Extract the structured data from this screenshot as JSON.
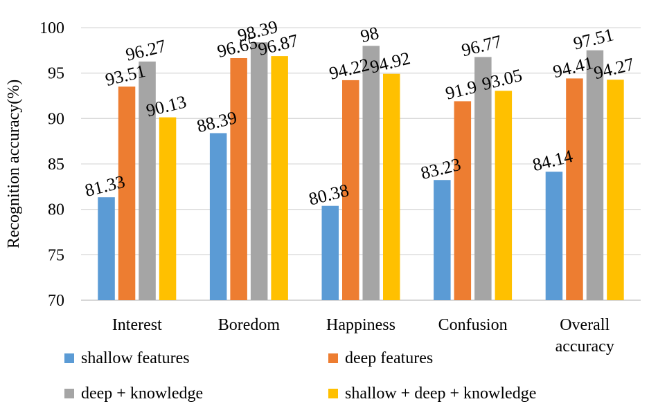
{
  "chart_data": {
    "type": "bar",
    "title": "",
    "xlabel": "",
    "ylabel": "Recognition accuracy(%)",
    "ylim": [
      70,
      100
    ],
    "yticks": [
      70,
      75,
      80,
      85,
      90,
      95,
      100
    ],
    "grid": true,
    "legend_position": "bottom",
    "categories": [
      [
        "Interest"
      ],
      [
        "Boredom"
      ],
      [
        "Happiness"
      ],
      [
        "Confusion"
      ],
      [
        "Overall",
        "accuracy"
      ]
    ],
    "series": [
      {
        "name": "shallow features",
        "color": "#5B9BD5",
        "values": [
          81.33,
          88.39,
          80.38,
          83.23,
          84.14
        ],
        "labels": [
          "81.33",
          "88.39",
          "80.38",
          "83.23",
          "84.14"
        ]
      },
      {
        "name": "deep features",
        "color": "#ED7D31",
        "values": [
          93.51,
          96.65,
          94.22,
          91.9,
          94.41
        ],
        "labels": [
          "93.51",
          "96.65",
          "94.22",
          "91.9",
          "94.41"
        ]
      },
      {
        "name": "deep + knowledge",
        "color": "#A5A5A5",
        "values": [
          96.27,
          98.39,
          98,
          96.77,
          97.51
        ],
        "labels": [
          "96.27",
          "98.39",
          "98",
          "96.77",
          "97.51"
        ]
      },
      {
        "name": "shallow + deep + knowledge",
        "color": "#FFC000",
        "values": [
          90.13,
          96.87,
          94.92,
          93.05,
          94.27
        ],
        "labels": [
          "90.13",
          "96.87",
          "94.92",
          "93.05",
          "94.27"
        ]
      }
    ]
  }
}
